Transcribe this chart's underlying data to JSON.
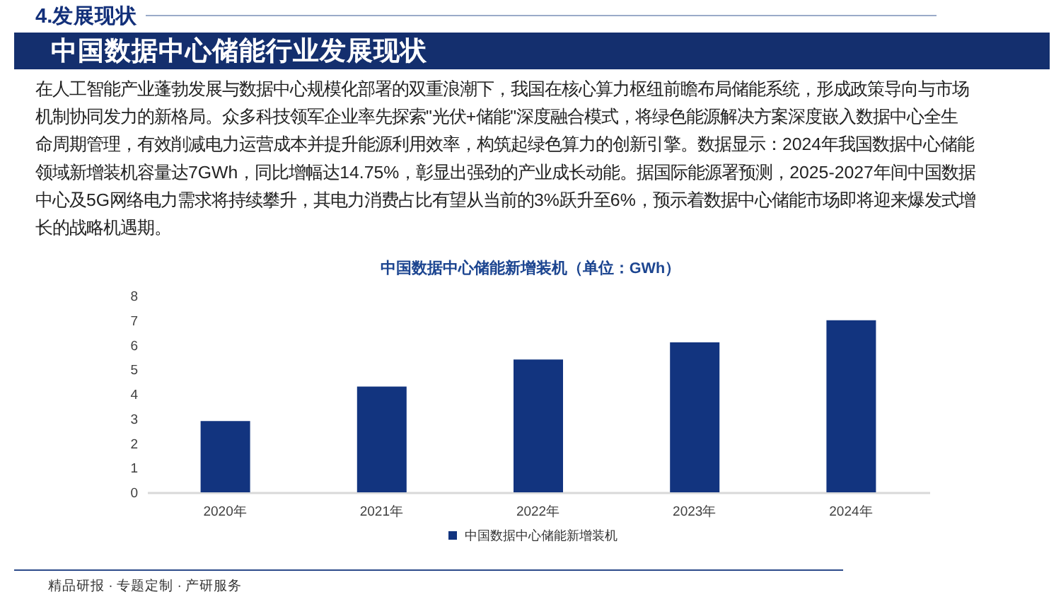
{
  "chart_data": {
    "type": "bar",
    "title": "中国数据中心储能新增装机（单位：GWh）",
    "categories": [
      "2020年",
      "2021年",
      "2022年",
      "2023年",
      "2024年"
    ],
    "series": [
      {
        "name": "中国数据中心储能新增装机",
        "color": "#12347f",
        "values": [
          2.9,
          4.3,
          5.4,
          6.1,
          7.0
        ]
      }
    ],
    "ylim": [
      0,
      8
    ],
    "yticks": [
      0,
      1,
      2,
      3,
      4,
      5,
      6,
      7,
      8
    ],
    "grid": false,
    "legend": "bottom",
    "annotations": [
      "4.发展现状",
      "中国数据中心储能行业发展现状",
      "在人工智能产业蓬勃发展与数据中心规模化部署的双重浪潮下，我国在核心算力枢纽前瞻布局储能系统，形成政策导向与市场机制协同发力的新格局。众多科技领军企业率先探索\"光伏+储能\"深度融合模式，将绿色能源解决方案深度嵌入数据中心全生命周期管理，有效削减电力运营成本并提升能源利用效率，构筑起绿色算力的创新引擎。数据显示：2024年我国数据中心储能领域新增装机容量达7GWh，同比增幅达14.75%，彰显出强劲的产业成长动能。据国际能源署预测，2025-2027年间中国数据中心及5G网络电力需求将持续攀升，其电力消费占比有望从当前的3%跃升至6%，预示着数据中心储能市场即将迎来爆发式增长的战略机遇期。",
      "精品研报 · 专题定制 · 产研服务"
    ]
  }
}
